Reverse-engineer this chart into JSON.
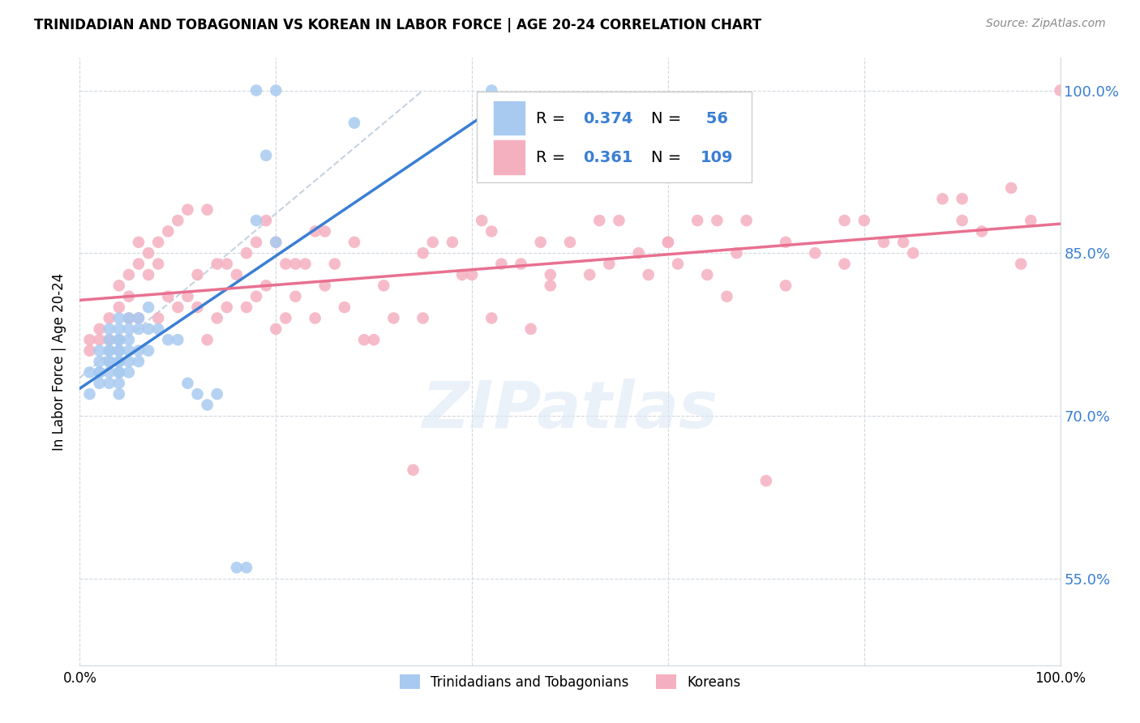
{
  "title": "TRINIDADIAN AND TOBAGONIAN VS KOREAN IN LABOR FORCE | AGE 20-24 CORRELATION CHART",
  "source": "Source: ZipAtlas.com",
  "ylabel": "In Labor Force | Age 20-24",
  "xlim": [
    0.0,
    1.0
  ],
  "ylim": [
    0.47,
    1.03
  ],
  "yticks": [
    0.55,
    0.7,
    0.85,
    1.0
  ],
  "ytick_labels": [
    "55.0%",
    "70.0%",
    "85.0%",
    "100.0%"
  ],
  "blue_R": 0.374,
  "blue_N": 56,
  "pink_R": 0.361,
  "pink_N": 109,
  "blue_color": "#a8caf0",
  "pink_color": "#f5b0c0",
  "blue_line_color": "#3a7fd4",
  "pink_line_color": "#e87090",
  "watermark": "ZIPatlas",
  "blue_scatter_x": [
    0.01,
    0.01,
    0.02,
    0.02,
    0.02,
    0.02,
    0.02,
    0.03,
    0.03,
    0.03,
    0.03,
    0.03,
    0.03,
    0.03,
    0.03,
    0.04,
    0.04,
    0.04,
    0.04,
    0.04,
    0.04,
    0.04,
    0.04,
    0.04,
    0.04,
    0.04,
    0.04,
    0.05,
    0.05,
    0.05,
    0.05,
    0.05,
    0.05,
    0.06,
    0.06,
    0.06,
    0.06,
    0.07,
    0.07,
    0.07,
    0.08,
    0.09,
    0.1,
    0.11,
    0.12,
    0.13,
    0.14,
    0.16,
    0.17,
    0.18,
    0.18,
    0.19,
    0.2,
    0.2,
    0.28,
    0.42
  ],
  "blue_scatter_y": [
    0.74,
    0.72,
    0.76,
    0.75,
    0.74,
    0.74,
    0.73,
    0.78,
    0.77,
    0.76,
    0.76,
    0.75,
    0.75,
    0.74,
    0.73,
    0.79,
    0.78,
    0.77,
    0.77,
    0.76,
    0.76,
    0.75,
    0.75,
    0.74,
    0.74,
    0.73,
    0.72,
    0.79,
    0.78,
    0.77,
    0.76,
    0.75,
    0.74,
    0.79,
    0.78,
    0.76,
    0.75,
    0.8,
    0.78,
    0.76,
    0.78,
    0.77,
    0.77,
    0.73,
    0.72,
    0.71,
    0.72,
    0.56,
    0.56,
    1.0,
    0.88,
    0.94,
    1.0,
    0.86,
    0.97,
    1.0
  ],
  "pink_scatter_x": [
    0.01,
    0.01,
    0.02,
    0.02,
    0.03,
    0.03,
    0.04,
    0.04,
    0.04,
    0.05,
    0.05,
    0.05,
    0.06,
    0.06,
    0.06,
    0.07,
    0.07,
    0.08,
    0.08,
    0.08,
    0.09,
    0.09,
    0.1,
    0.1,
    0.11,
    0.11,
    0.12,
    0.12,
    0.13,
    0.13,
    0.14,
    0.14,
    0.15,
    0.15,
    0.16,
    0.17,
    0.17,
    0.18,
    0.18,
    0.19,
    0.19,
    0.2,
    0.2,
    0.21,
    0.21,
    0.22,
    0.22,
    0.23,
    0.24,
    0.24,
    0.25,
    0.25,
    0.26,
    0.27,
    0.28,
    0.29,
    0.3,
    0.31,
    0.32,
    0.34,
    0.35,
    0.36,
    0.38,
    0.39,
    0.4,
    0.41,
    0.42,
    0.43,
    0.45,
    0.46,
    0.47,
    0.48,
    0.5,
    0.52,
    0.53,
    0.55,
    0.57,
    0.58,
    0.6,
    0.61,
    0.63,
    0.64,
    0.65,
    0.67,
    0.68,
    0.7,
    0.72,
    0.75,
    0.78,
    0.8,
    0.82,
    0.85,
    0.88,
    0.9,
    0.92,
    0.95,
    0.97,
    1.0,
    0.35,
    0.42,
    0.48,
    0.54,
    0.6,
    0.66,
    0.72,
    0.78,
    0.84,
    0.9,
    0.96
  ],
  "pink_scatter_y": [
    0.77,
    0.76,
    0.78,
    0.77,
    0.79,
    0.77,
    0.82,
    0.8,
    0.77,
    0.83,
    0.81,
    0.79,
    0.86,
    0.84,
    0.79,
    0.85,
    0.83,
    0.86,
    0.84,
    0.79,
    0.87,
    0.81,
    0.88,
    0.8,
    0.89,
    0.81,
    0.83,
    0.8,
    0.77,
    0.89,
    0.84,
    0.79,
    0.84,
    0.8,
    0.83,
    0.85,
    0.8,
    0.86,
    0.81,
    0.88,
    0.82,
    0.78,
    0.86,
    0.84,
    0.79,
    0.84,
    0.81,
    0.84,
    0.79,
    0.87,
    0.87,
    0.82,
    0.84,
    0.8,
    0.86,
    0.77,
    0.77,
    0.82,
    0.79,
    0.65,
    0.85,
    0.86,
    0.86,
    0.83,
    0.83,
    0.88,
    0.87,
    0.84,
    0.84,
    0.78,
    0.86,
    0.83,
    0.86,
    0.83,
    0.88,
    0.88,
    0.85,
    0.83,
    0.86,
    0.84,
    0.88,
    0.83,
    0.88,
    0.85,
    0.88,
    0.64,
    0.86,
    0.85,
    0.88,
    0.88,
    0.86,
    0.85,
    0.9,
    0.9,
    0.87,
    0.91,
    0.88,
    1.0,
    0.79,
    0.79,
    0.82,
    0.84,
    0.86,
    0.81,
    0.82,
    0.84,
    0.86,
    0.88,
    0.84
  ]
}
